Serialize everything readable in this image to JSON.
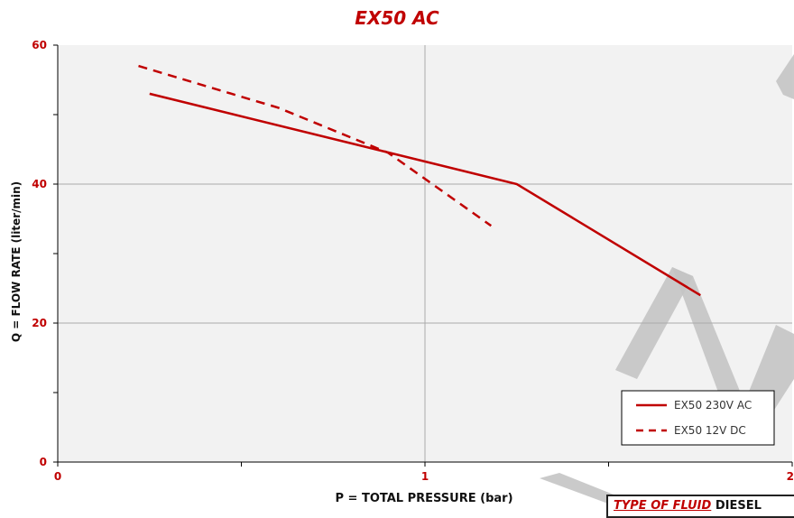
{
  "chart_data": {
    "type": "line",
    "title": "EX50 AC",
    "xlabel": "P = TOTAL PRESSURE (bar)",
    "ylabel": "Q = FLOW RATE (liter/min)",
    "xlim": [
      0,
      2
    ],
    "ylim": [
      0,
      60
    ],
    "x_ticks": [
      "0",
      "1",
      "2"
    ],
    "y_ticks": [
      "0",
      "20",
      "40",
      "60"
    ],
    "grid": true,
    "legend_position": "bottom-right",
    "series": [
      {
        "name": "EX50 230V AC",
        "style": "solid",
        "color": "#c00000",
        "points": [
          [
            0.25,
            53
          ],
          [
            1.25,
            40
          ],
          [
            1.75,
            24
          ]
        ]
      },
      {
        "name": "EX50 12V DC",
        "style": "dashed",
        "color": "#c00000",
        "points": [
          [
            0.22,
            57
          ],
          [
            0.6,
            51
          ],
          [
            0.9,
            44.5
          ],
          [
            1.18,
            34
          ]
        ]
      }
    ]
  },
  "fluid_label": {
    "key": "TYPE OF FLUID",
    "value": "DIESEL"
  },
  "colors": {
    "accent": "#c00000",
    "plot_bg": "#f2f2f2",
    "grid": "#aaaaaa",
    "watermark": "#c4c4c4"
  }
}
